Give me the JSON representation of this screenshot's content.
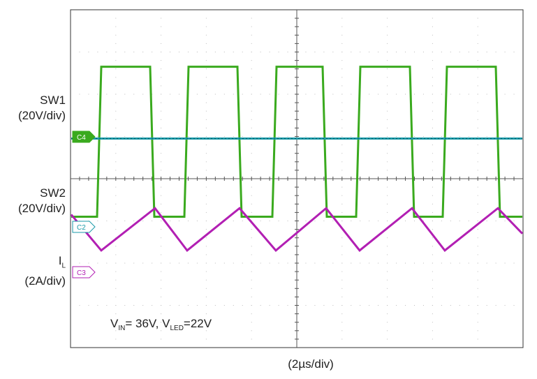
{
  "chart_data": {
    "type": "line",
    "x_axis_label": "(2µs/div)",
    "divisions": {
      "x": 10,
      "y": 8
    },
    "grid": true,
    "channels": [
      {
        "name": "SW1",
        "scale": "(20V/div)",
        "marker": "C4",
        "color": "#3aaa1e",
        "waveform": "square",
        "high_div": 1.35,
        "low_div": 4.9
      },
      {
        "name": "SW2",
        "scale": "(20V/div)",
        "marker": "C2",
        "color": "#1a9aa8",
        "waveform": "flat",
        "level_div": 3.05
      },
      {
        "name": "I",
        "name_sub": "L",
        "scale": "(2A/div)",
        "marker": "C3",
        "color": "#b21fb3",
        "waveform": "triangle",
        "peak_div": 4.7,
        "valley_div": 5.7
      }
    ],
    "annotation": {
      "v": "V",
      "in_sub": "IN",
      "mid": "= 36V, V",
      "led_sub": "LED",
      "end": "=22V"
    }
  }
}
